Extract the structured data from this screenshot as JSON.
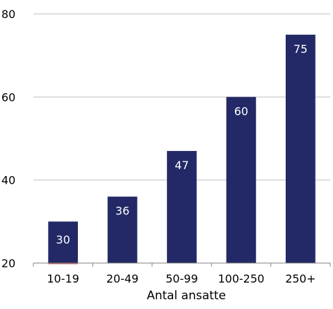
{
  "chart_data": {
    "type": "bar",
    "categories": [
      "10-19",
      "20-49",
      "50-99",
      "100-250",
      "250+"
    ],
    "values": [
      30,
      36,
      47,
      60,
      75
    ],
    "data_labels": [
      "30",
      "36",
      "47",
      "60",
      "75"
    ],
    "title": "",
    "xlabel": "Antal ansatte",
    "ylabel": "",
    "ylim": [
      20,
      80
    ],
    "yticks": [
      20,
      40,
      60,
      80
    ],
    "ytick_labels": [
      "20",
      "40",
      "60",
      "80"
    ],
    "grid": true,
    "legend": "none",
    "colors": {
      "bar": "#232966",
      "data_label": "#ffffff",
      "gridline": "#bfbfbf",
      "axis": "#7f7f7f",
      "text": "#000000",
      "accent": "#c0504d"
    }
  }
}
